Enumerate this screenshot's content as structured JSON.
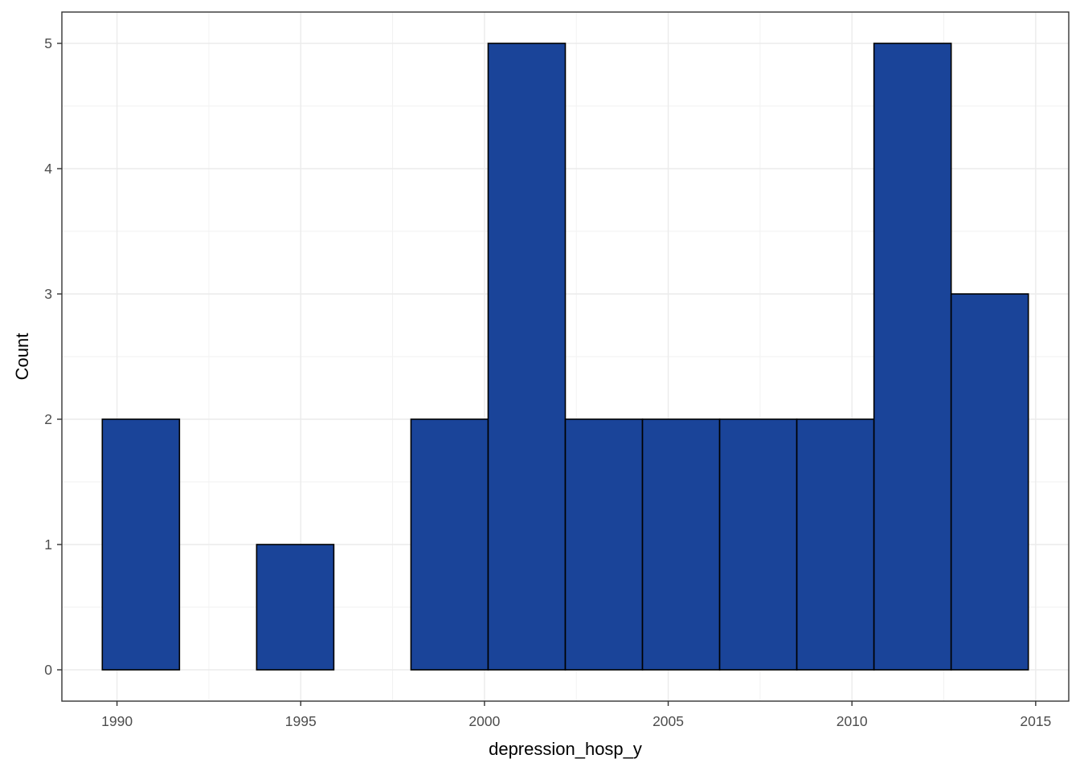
{
  "chart_data": {
    "type": "bar",
    "subtype": "histogram",
    "xlabel": "depression_hosp_y",
    "ylabel": "Count",
    "bin_width": 2.1,
    "bins": [
      {
        "x_start": 1989.6,
        "x_end": 1991.7,
        "count": 2
      },
      {
        "x_start": 1991.7,
        "x_end": 1993.8,
        "count": 0
      },
      {
        "x_start": 1993.8,
        "x_end": 1995.9,
        "count": 1
      },
      {
        "x_start": 1995.9,
        "x_end": 1998.0,
        "count": 0
      },
      {
        "x_start": 1998.0,
        "x_end": 2000.1,
        "count": 2
      },
      {
        "x_start": 2000.1,
        "x_end": 2002.2,
        "count": 5
      },
      {
        "x_start": 2002.2,
        "x_end": 2004.3,
        "count": 2
      },
      {
        "x_start": 2004.3,
        "x_end": 2006.4,
        "count": 2
      },
      {
        "x_start": 2006.4,
        "x_end": 2008.5,
        "count": 2
      },
      {
        "x_start": 2008.5,
        "x_end": 2010.6,
        "count": 2
      },
      {
        "x_start": 2010.6,
        "x_end": 2012.7,
        "count": 5
      },
      {
        "x_start": 2012.7,
        "x_end": 2014.8,
        "count": 3
      }
    ],
    "x_ticks": [
      1990,
      1995,
      2000,
      2005,
      2010,
      2015
    ],
    "x_tick_labels": [
      "1990",
      "1995",
      "2000",
      "2005",
      "2010",
      "2015"
    ],
    "y_ticks": [
      0,
      1,
      2,
      3,
      4,
      5
    ],
    "y_tick_labels": [
      "0",
      "1",
      "2",
      "3",
      "4",
      "5"
    ],
    "xlim": [
      1988.5,
      2015.9
    ],
    "ylim": [
      -0.25,
      5.25
    ],
    "grid": true,
    "legend": "none",
    "colors": {
      "bar_fill": "#1A4499",
      "bar_outline": "#000000",
      "grid_major": "#EBEBEB",
      "grid_minor": "#F2F2F2",
      "panel_border": "#333333",
      "axis_tick": "#333333"
    }
  }
}
